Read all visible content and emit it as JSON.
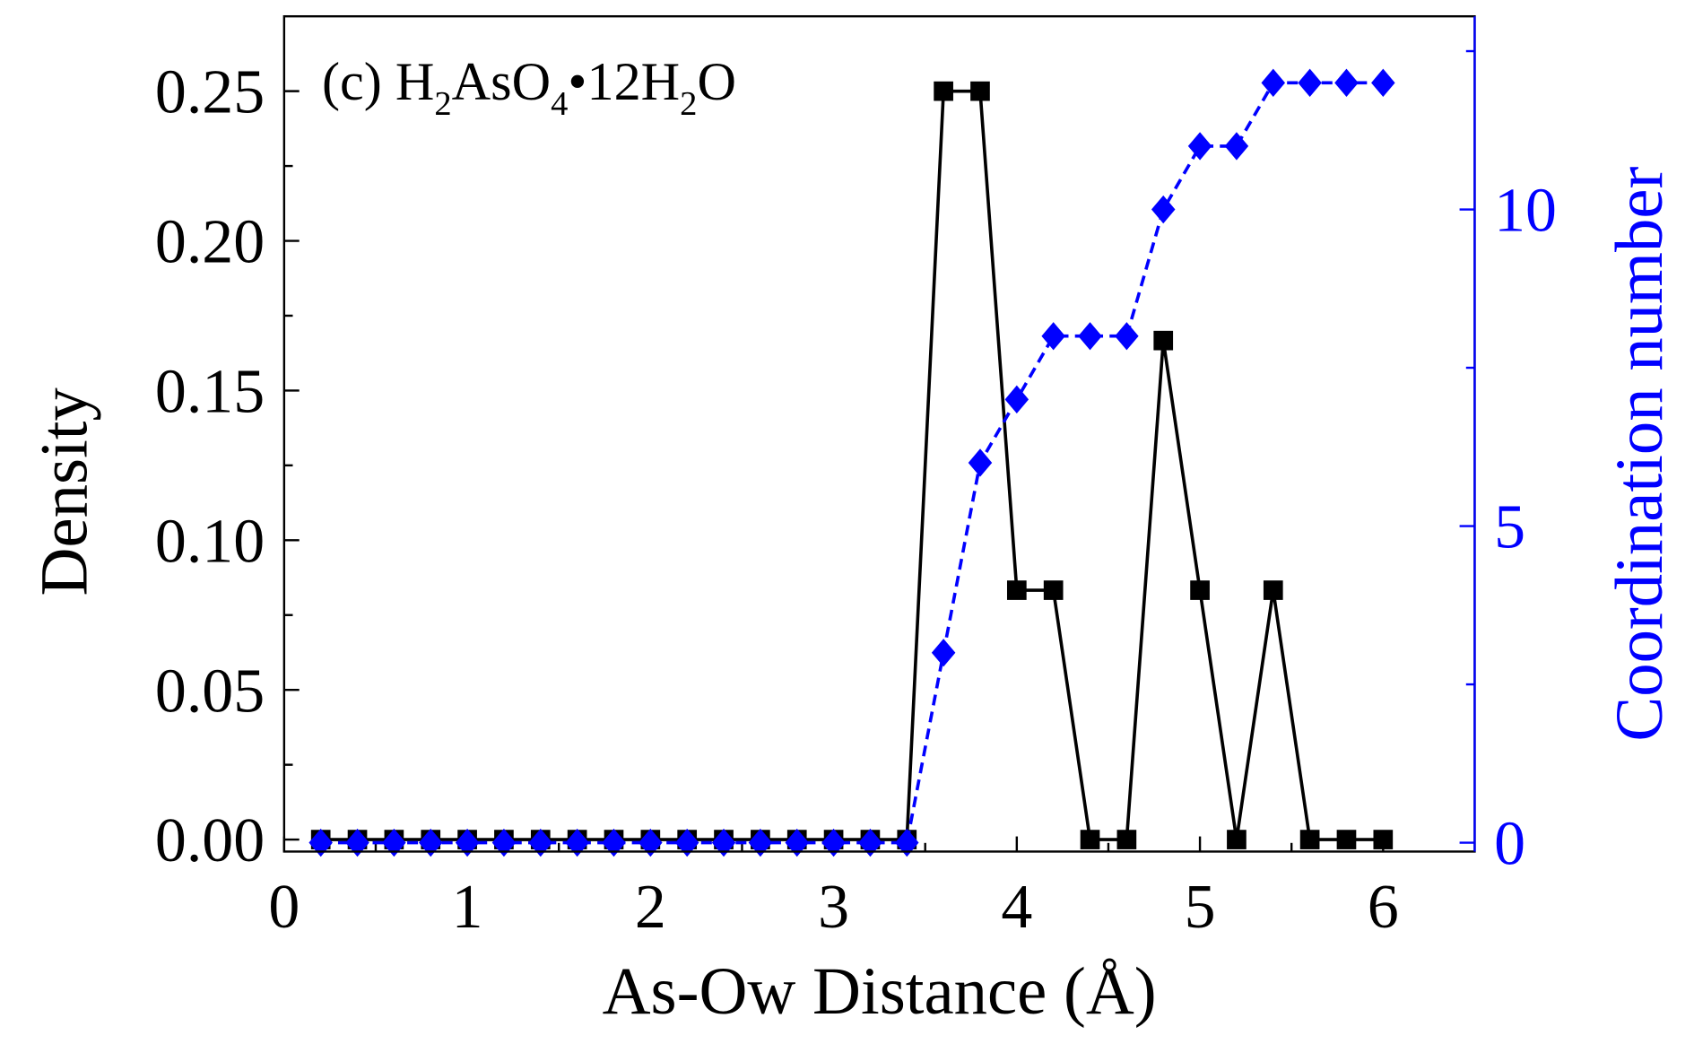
{
  "chart_data": {
    "type": "line",
    "annotation": {
      "prefix": "(c) H",
      "sub1": "2",
      "mid": "AsO",
      "sub2": "4",
      "bullet": "•",
      "mid2": "12H",
      "sub3": "2",
      "suffix": "O"
    },
    "xlabel": "As-Ow Distance (Å)",
    "ylabel": "Density",
    "y2label": "Coordination number",
    "xlim": [
      0,
      6.5
    ],
    "ylim": [
      -0.004,
      0.275
    ],
    "y2lim": [
      -0.14,
      13.05
    ],
    "xticks": [
      "0",
      "1",
      "2",
      "3",
      "4",
      "5",
      "6"
    ],
    "yticks": [
      "0.00",
      "0.05",
      "0.10",
      "0.15",
      "0.20",
      "0.25"
    ],
    "y2ticks": [
      "0",
      "5",
      "10"
    ],
    "x": [
      0.2,
      0.4,
      0.6,
      0.8,
      1.0,
      1.2,
      1.4,
      1.6,
      1.8,
      2.0,
      2.2,
      2.4,
      2.6,
      2.8,
      3.0,
      3.2,
      3.4,
      3.6,
      3.8,
      4.0,
      4.2,
      4.4,
      4.6,
      4.8,
      5.0,
      5.2,
      5.4,
      5.6,
      5.8,
      6.0
    ],
    "series": [
      {
        "name": "Density",
        "axis": "left",
        "color": "#000000",
        "marker": "square",
        "line": "solid",
        "values": [
          0,
          0,
          0,
          0,
          0,
          0,
          0,
          0,
          0,
          0,
          0,
          0,
          0,
          0,
          0,
          0,
          0,
          0.25,
          0.25,
          0.0833,
          0.0833,
          0,
          0,
          0.1667,
          0.0833,
          0,
          0.0833,
          0,
          0,
          0
        ]
      },
      {
        "name": "Coordination number",
        "axis": "right",
        "color": "#0000ff",
        "marker": "diamond",
        "line": "dashed",
        "values": [
          0,
          0,
          0,
          0,
          0,
          0,
          0,
          0,
          0,
          0,
          0,
          0,
          0,
          0,
          0,
          0,
          0,
          3,
          6,
          7,
          8,
          8,
          8,
          10,
          11,
          11,
          12,
          12,
          12,
          12
        ]
      }
    ]
  }
}
